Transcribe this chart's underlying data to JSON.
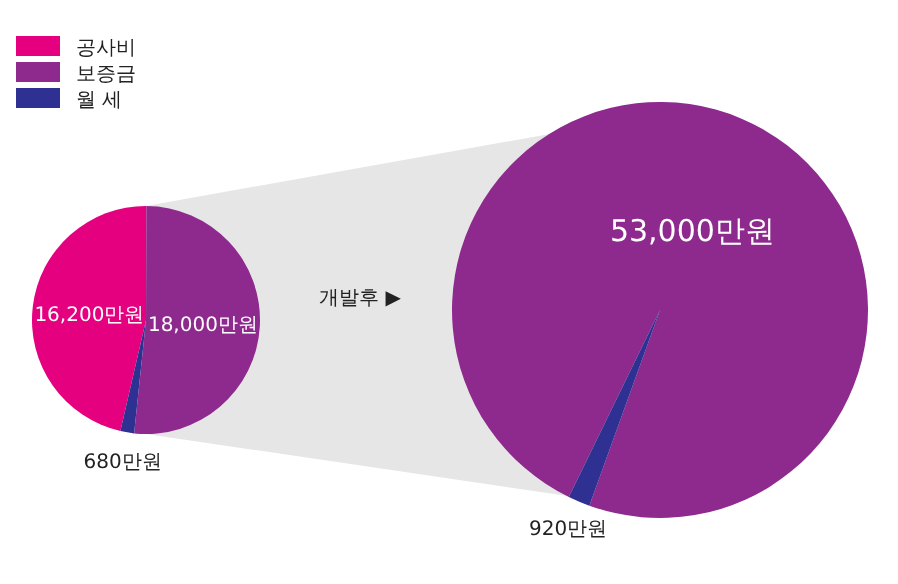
{
  "chart_data": [
    {
      "type": "pie",
      "categories": [
        "공사비",
        "보증금",
        "월 세"
      ],
      "values": [
        16200,
        18000,
        680
      ],
      "colors": [
        "#e4007f",
        "#8e2a8e",
        "#2e3192"
      ],
      "value_labels": [
        "16,200만원",
        "18,000만원",
        "680만원"
      ],
      "legend": "top left"
    },
    {
      "type": "pie",
      "categories": [
        null,
        null
      ],
      "values": [
        53000,
        920
      ],
      "colors": [
        "#8e2a8e",
        "#2e3192"
      ],
      "value_labels": [
        "53,000만원",
        "920만원"
      ],
      "annotations": [
        "개발후 ▶"
      ]
    }
  ]
}
